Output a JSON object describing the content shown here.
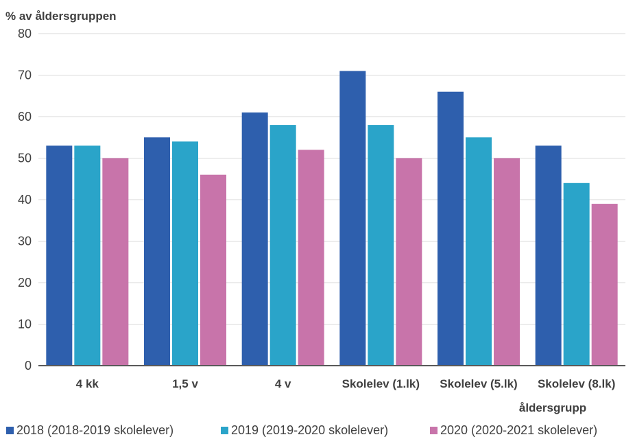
{
  "chart_data": {
    "type": "bar",
    "ylabel": "% av åldersgruppen",
    "xlabel": "åldersgrupp",
    "ylim": [
      0,
      80
    ],
    "yticks": [
      0,
      10,
      20,
      30,
      40,
      50,
      60,
      70,
      80
    ],
    "grid": true,
    "legend_position": "bottom",
    "categories": [
      "4 kk",
      "1,5 v",
      "4 v",
      "Skolelev (1.lk)",
      "Skolelev (5.lk)",
      "Skolelev (8.lk)"
    ],
    "series": [
      {
        "name": "2018 (2018-2019 skolelever)",
        "color": "#2e5fad",
        "values": [
          53,
          55,
          61,
          71,
          66,
          53
        ]
      },
      {
        "name": "2019 (2019-2020 skolelever)",
        "color": "#2aa4c9",
        "values": [
          53,
          54,
          58,
          58,
          55,
          44
        ]
      },
      {
        "name": "2020 (2020-2021 skolelever)",
        "color": "#c874aa",
        "values": [
          50,
          46,
          52,
          50,
          50,
          39
        ]
      }
    ]
  }
}
